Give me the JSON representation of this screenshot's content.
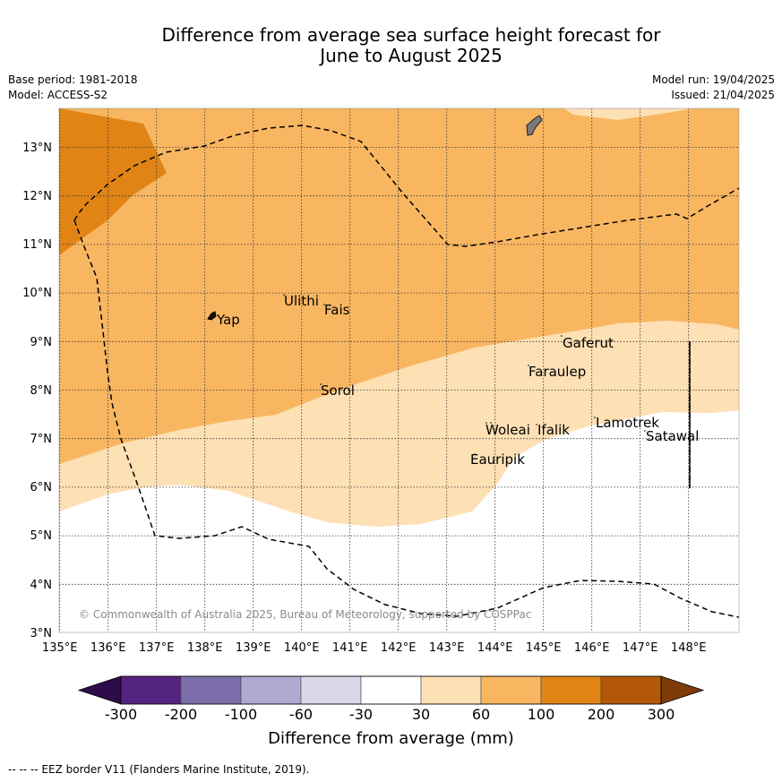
{
  "title_line1": "Difference from average sea surface height forecast for",
  "title_line2": "June to August 2025",
  "base_period": "Base period: 1981-2018",
  "model": "Model: ACCESS-S2",
  "model_run": "Model run: 19/04/2025",
  "issued": "Issued: 21/04/2025",
  "x_ticks": [
    "135°E",
    "136°E",
    "137°E",
    "138°E",
    "139°E",
    "140°E",
    "141°E",
    "142°E",
    "143°E",
    "144°E",
    "145°E",
    "146°E",
    "147°E",
    "148°E"
  ],
  "y_ticks": [
    "13°N",
    "12°N",
    "11°N",
    "10°N",
    "9°N",
    "8°N",
    "7°N",
    "6°N",
    "5°N",
    "4°N",
    "3°N"
  ],
  "places": [
    {
      "name": "Yap"
    },
    {
      "name": "Ulithi"
    },
    {
      "name": "Fais"
    },
    {
      "name": "Sorol"
    },
    {
      "name": "Gaferut"
    },
    {
      "name": "Faraulep"
    },
    {
      "name": "Woleai"
    },
    {
      "name": "Ifalik"
    },
    {
      "name": "Lamotrek"
    },
    {
      "name": "Satawal"
    },
    {
      "name": "Eauripik"
    }
  ],
  "copyright": "© Commonwealth of Australia 2025, Bureau of Meteorology, supported by COSPPac",
  "colorbar": {
    "labels": [
      "-300",
      "-200",
      "-100",
      "-60",
      "-30",
      "30",
      "60",
      "100",
      "200",
      "300"
    ],
    "colors": [
      "#2e0b4a",
      "#54237f",
      "#7b6eab",
      "#b1a9d2",
      "#d9d9ea",
      "#ffffff",
      "#fde0b4",
      "#f9b661",
      "#e08416",
      "#b35806",
      "#7f3b08"
    ],
    "title": "Difference from average (mm)"
  },
  "footer": "--  --  -- EEZ border V11 (Flanders Marine Institute, 2019)."
}
